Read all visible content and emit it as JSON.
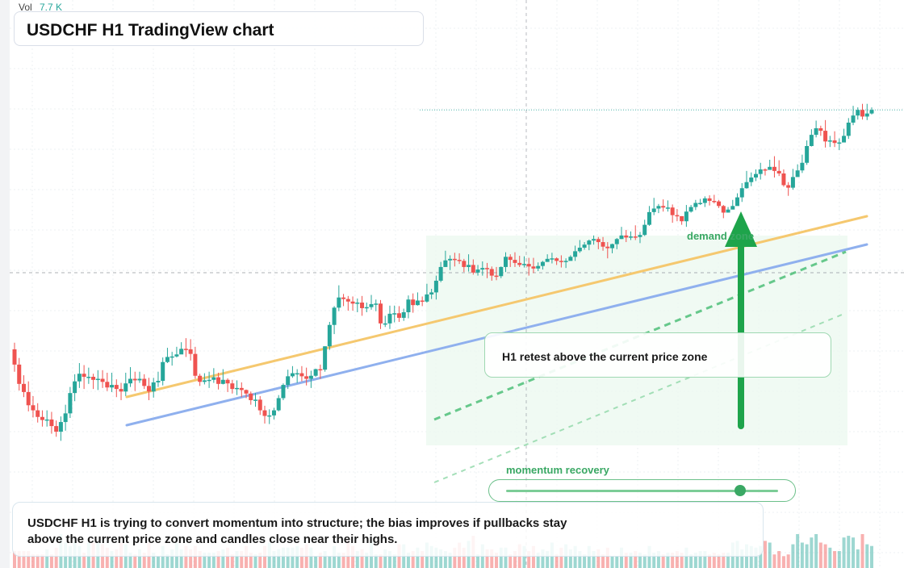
{
  "volume": {
    "label": "Vol",
    "value": "7.7 K"
  },
  "header": {
    "title": "USDCHF H1 TradingView chart"
  },
  "annotations": {
    "callout": "H1 retest above the current price zone",
    "zone_label": "demand zone",
    "momentum_label": "momentum recovery",
    "momentum_level": 0.86,
    "summary": "USDCHF H1 is trying to convert momentum into structure; the bias improves if pullbacks stay above the current price zone and candles close near their highs."
  },
  "colors": {
    "up": "#26a69a",
    "down": "#ef5350",
    "trend_orange": "#f5c86f",
    "trend_blue": "#8fb0ee",
    "accent_green": "#1ea44b"
  },
  "chart_data": {
    "type": "candlestick",
    "interval": "H1",
    "symbol": "USDCHF",
    "title": "USDCHF H1 TradingView chart",
    "grid": true,
    "candles": [
      [
        35.4,
        32.4,
        36.7,
        31.0,
        10
      ],
      [
        32.4,
        28.6,
        33.7,
        27.3,
        10
      ],
      [
        28.6,
        27.0,
        30.3,
        26.0,
        10
      ],
      [
        27.0,
        24.4,
        29.1,
        23.2,
        10
      ],
      [
        24.4,
        23.4,
        26.2,
        22.0,
        8
      ],
      [
        23.4,
        22.1,
        24.8,
        21.0,
        8
      ],
      [
        22.1,
        21.5,
        23.4,
        20.2,
        8
      ],
      [
        21.5,
        21.6,
        23.4,
        20.2,
        11
      ],
      [
        21.6,
        20.3,
        23.1,
        18.8,
        8
      ],
      [
        20.3,
        19.2,
        21.4,
        18.2,
        12
      ],
      [
        19.2,
        21.1,
        22.2,
        17.4,
        20
      ],
      [
        21.1,
        22.8,
        24.5,
        19.4,
        15
      ],
      [
        22.8,
        26.8,
        28.0,
        21.9,
        13
      ],
      [
        26.8,
        29.1,
        30.5,
        25.2,
        16
      ],
      [
        29.1,
        30.6,
        32.7,
        27.8,
        13
      ],
      [
        30.6,
        30.0,
        32.3,
        27.6,
        9
      ],
      [
        30.0,
        30.0,
        31.8,
        28.6,
        15
      ],
      [
        30.0,
        29.4,
        30.6,
        27.6,
        15
      ],
      [
        29.4,
        29.6,
        31.3,
        27.4,
        15
      ],
      [
        29.6,
        29.0,
        31.3,
        27.8,
        14
      ],
      [
        29.0,
        27.9,
        30.8,
        27.2,
        12
      ],
      [
        27.9,
        28.4,
        30.8,
        27.0,
        10
      ],
      [
        28.4,
        27.6,
        29.5,
        26.0,
        11
      ],
      [
        27.6,
        27.1,
        28.8,
        25.4,
        15
      ],
      [
        27.1,
        28.7,
        30.8,
        26.2,
        14
      ],
      [
        28.7,
        29.6,
        31.9,
        28.0,
        9
      ],
      [
        29.6,
        29.3,
        31.0,
        27.2,
        8
      ],
      [
        29.3,
        29.6,
        31.0,
        28.8,
        11
      ],
      [
        29.6,
        28.2,
        30.5,
        27.6,
        9
      ],
      [
        28.2,
        27.1,
        29.8,
        25.4,
        15
      ],
      [
        27.1,
        28.9,
        29.8,
        25.9,
        9
      ],
      [
        28.9,
        29.2,
        31.0,
        28.0,
        7
      ],
      [
        29.2,
        32.9,
        33.8,
        28.3,
        13
      ],
      [
        32.9,
        33.9,
        35.7,
        32.7,
        8
      ],
      [
        33.9,
        34.0,
        34.9,
        32.2,
        11
      ],
      [
        34.0,
        34.4,
        35.9,
        33.8,
        15
      ],
      [
        34.4,
        35.5,
        36.8,
        34.6,
        11
      ],
      [
        35.5,
        35.4,
        37.6,
        33.9,
        13
      ],
      [
        35.4,
        34.5,
        37.4,
        33.2,
        11
      ],
      [
        34.5,
        30.2,
        35.9,
        29.6,
        13
      ],
      [
        30.2,
        29.0,
        30.6,
        28.2,
        10
      ],
      [
        29.0,
        29.3,
        30.7,
        28.5,
        9
      ],
      [
        29.3,
        29.4,
        31.0,
        27.8,
        9
      ],
      [
        29.4,
        29.9,
        31.7,
        28.8,
        9
      ],
      [
        29.9,
        28.6,
        30.8,
        27.5,
        10
      ],
      [
        28.6,
        29.4,
        31.5,
        28.5,
        11
      ],
      [
        29.4,
        28.7,
        29.7,
        27.0,
        12
      ],
      [
        28.7,
        27.6,
        29.4,
        26.7,
        8
      ],
      [
        27.6,
        27.8,
        29.3,
        26.4,
        10
      ],
      [
        27.8,
        27.4,
        28.9,
        26.0,
        10
      ],
      [
        27.4,
        26.7,
        27.5,
        25.8,
        13
      ],
      [
        26.7,
        25.4,
        27.1,
        24.5,
        9
      ],
      [
        25.4,
        25.5,
        26.8,
        24.1,
        8
      ],
      [
        25.5,
        23.4,
        26.2,
        22.5,
        9
      ],
      [
        23.4,
        22.3,
        24.3,
        20.8,
        13
      ],
      [
        22.3,
        22.4,
        23.6,
        20.7,
        15
      ],
      [
        22.4,
        23.4,
        23.9,
        21.6,
        10
      ],
      [
        23.4,
        25.8,
        26.4,
        23.2,
        11
      ],
      [
        25.8,
        28.4,
        28.7,
        25.4,
        12
      ],
      [
        28.4,
        30.1,
        31.4,
        27.6,
        12
      ],
      [
        30.1,
        30.7,
        32.1,
        29.8,
        12
      ],
      [
        30.7,
        30.7,
        31.5,
        28.8,
        13
      ],
      [
        30.7,
        30.1,
        32.1,
        29.1,
        12
      ],
      [
        30.1,
        29.6,
        31.8,
        28.3,
        14
      ],
      [
        29.6,
        30.2,
        31.2,
        27.8,
        12
      ],
      [
        30.2,
        31.5,
        31.6,
        30.0,
        7
      ],
      [
        31.5,
        31.4,
        32.4,
        29.6,
        9
      ],
      [
        31.4,
        36.0,
        36.0,
        31.0,
        10
      ],
      [
        36.0,
        40.2,
        40.8,
        35.3,
        7
      ],
      [
        40.2,
        43.6,
        43.9,
        38.4,
        13
      ],
      [
        43.6,
        45.6,
        48.0,
        42.9,
        9
      ],
      [
        45.6,
        45.3,
        46.3,
        43.9,
        9
      ],
      [
        45.3,
        44.8,
        45.9,
        43.0,
        16
      ],
      [
        44.8,
        44.4,
        45.8,
        43.0,
        13
      ],
      [
        44.4,
        44.6,
        45.4,
        42.7,
        10
      ],
      [
        44.6,
        43.5,
        45.9,
        42.0,
        11
      ],
      [
        43.5,
        43.7,
        44.6,
        42.7,
        9
      ],
      [
        43.7,
        44.3,
        46.1,
        43.2,
        16
      ],
      [
        44.3,
        44.4,
        45.2,
        42.9,
        8
      ],
      [
        44.4,
        40.5,
        45.1,
        39.4,
        8
      ],
      [
        40.5,
        40.5,
        42.0,
        39.8,
        11
      ],
      [
        40.5,
        42.4,
        44.0,
        39.4,
        10
      ],
      [
        42.4,
        42.5,
        44.0,
        40.7,
        8
      ],
      [
        42.5,
        41.6,
        43.9,
        40.8,
        14
      ],
      [
        41.6,
        42.7,
        43.4,
        41.0,
        14
      ],
      [
        42.7,
        45.2,
        46.0,
        41.5,
        9
      ],
      [
        45.2,
        44.1,
        46.4,
        42.6,
        10
      ],
      [
        44.1,
        45.0,
        46.6,
        44.0,
        12
      ],
      [
        45.0,
        44.8,
        45.8,
        43.9,
        10
      ],
      [
        44.8,
        46.2,
        48.3,
        44.6,
        15
      ],
      [
        46.2,
        46.6,
        47.3,
        45.3,
        13
      ],
      [
        46.6,
        48.9,
        49.9,
        45.2,
        12
      ],
      [
        48.9,
        51.6,
        52.6,
        48.6,
        11
      ],
      [
        51.6,
        52.9,
        54.8,
        51.6,
        10
      ],
      [
        52.9,
        53.2,
        53.9,
        51.0,
        9
      ],
      [
        53.2,
        53.0,
        54.4,
        51.7,
        12
      ],
      [
        53.0,
        52.8,
        54.3,
        52.2,
        15
      ],
      [
        52.8,
        51.6,
        53.2,
        50.6,
        12
      ],
      [
        51.6,
        52.0,
        54.1,
        50.7,
        16
      ],
      [
        52.0,
        50.5,
        53.1,
        50.1,
        19
      ],
      [
        50.5,
        51.1,
        52.0,
        49.9,
        8
      ],
      [
        51.1,
        51.4,
        52.7,
        49.9,
        14
      ],
      [
        51.4,
        51.2,
        52.4,
        49.4,
        11
      ],
      [
        51.2,
        49.9,
        51.7,
        48.9,
        11
      ],
      [
        49.9,
        49.8,
        51.6,
        49.0,
        9
      ],
      [
        49.8,
        51.6,
        51.7,
        49.4,
        12
      ],
      [
        51.6,
        53.6,
        54.5,
        50.6,
        12
      ],
      [
        53.6,
        53.0,
        54.1,
        51.6,
        8
      ],
      [
        53.0,
        52.4,
        54.5,
        51.6,
        10
      ],
      [
        52.4,
        52.0,
        53.8,
        51.6,
        14
      ],
      [
        52.0,
        52.2,
        53.7,
        51.5,
        13
      ],
      [
        52.2,
        51.7,
        53.4,
        49.9,
        10
      ],
      [
        51.7,
        51.3,
        53.4,
        50.4,
        13
      ],
      [
        51.3,
        51.8,
        52.5,
        50.8,
        9
      ],
      [
        51.8,
        52.6,
        52.8,
        51.1,
        11
      ],
      [
        52.6,
        53.2,
        54.1,
        52.6,
        10
      ],
      [
        53.2,
        53.3,
        54.4,
        52.3,
        15
      ],
      [
        53.3,
        52.8,
        53.5,
        52.0,
        8
      ],
      [
        52.8,
        52.6,
        53.9,
        51.5,
        12
      ],
      [
        52.6,
        52.8,
        53.3,
        51.4,
        14
      ],
      [
        52.8,
        53.6,
        53.9,
        53.1,
        11
      ],
      [
        53.6,
        54.7,
        55.8,
        52.8,
        13
      ],
      [
        54.7,
        55.4,
        56.9,
        54.4,
        10
      ],
      [
        55.4,
        56.0,
        56.5,
        55.0,
        8
      ],
      [
        56.0,
        56.8,
        57.0,
        54.9,
        13
      ],
      [
        56.8,
        57.1,
        57.8,
        56.0,
        10
      ],
      [
        57.1,
        56.5,
        57.5,
        55.1,
        11
      ],
      [
        56.5,
        55.6,
        57.5,
        54.8,
        8
      ],
      [
        55.6,
        55.3,
        56.5,
        53.3,
        12
      ],
      [
        55.3,
        56.1,
        56.2,
        54.3,
        7
      ],
      [
        56.1,
        57.1,
        57.3,
        55.1,
        7
      ],
      [
        57.1,
        57.8,
        59.5,
        57.1,
        12
      ],
      [
        57.8,
        57.4,
        58.9,
        56.5,
        9
      ],
      [
        57.4,
        57.6,
        58.6,
        56.9,
        9
      ],
      [
        57.6,
        57.5,
        59.8,
        56.9,
        10
      ],
      [
        57.5,
        57.9,
        58.5,
        56.3,
        9
      ],
      [
        57.9,
        59.9,
        60.9,
        57.7,
        8
      ],
      [
        59.9,
        62.4,
        63.6,
        59.7,
        13
      ],
      [
        62.4,
        63.1,
        65.2,
        61.8,
        9
      ],
      [
        63.1,
        63.6,
        64.0,
        62.2,
        10
      ],
      [
        63.6,
        63.3,
        64.9,
        62.5,
        8
      ],
      [
        63.3,
        63.3,
        64.7,
        62.5,
        9
      ],
      [
        63.3,
        61.8,
        63.9,
        60.3,
        9
      ],
      [
        61.8,
        61.6,
        63.0,
        60.6,
        10
      ],
      [
        61.6,
        60.6,
        61.6,
        59.9,
        9
      ],
      [
        60.6,
        62.5,
        63.8,
        59.5,
        12
      ],
      [
        62.5,
        63.4,
        63.8,
        62.3,
        8
      ],
      [
        63.4,
        64.2,
        64.8,
        62.8,
        9
      ],
      [
        64.2,
        64.2,
        65.0,
        63.8,
        10
      ],
      [
        64.2,
        65.1,
        65.5,
        63.4,
        10
      ],
      [
        65.1,
        64.6,
        65.7,
        63.7,
        8
      ],
      [
        64.6,
        64.5,
        65.8,
        64.1,
        9
      ],
      [
        64.5,
        63.6,
        64.8,
        63.2,
        8
      ],
      [
        63.6,
        62.3,
        63.8,
        61.2,
        9
      ],
      [
        62.3,
        62.9,
        63.4,
        62.6,
        9
      ],
      [
        62.9,
        63.6,
        64.8,
        63.3,
        15
      ],
      [
        63.6,
        65.3,
        66.1,
        63.8,
        16
      ],
      [
        65.3,
        67.1,
        68.1,
        64.4,
        11
      ],
      [
        67.1,
        68.3,
        70.5,
        67.0,
        14
      ],
      [
        68.3,
        69.2,
        70.2,
        67.5,
        13
      ],
      [
        69.2,
        69.9,
        70.8,
        68.5,
        12
      ],
      [
        69.9,
        70.8,
        72.1,
        68.8,
        13
      ],
      [
        70.8,
        70.7,
        71.0,
        69.6,
        16
      ],
      [
        70.7,
        71.3,
        72.7,
        70.8,
        15
      ],
      [
        71.3,
        70.5,
        73.4,
        69.2,
        8
      ],
      [
        70.5,
        70.0,
        72.6,
        69.5,
        10
      ],
      [
        70.0,
        67.7,
        70.8,
        67.4,
        7
      ],
      [
        67.7,
        67.2,
        68.3,
        65.6,
        8
      ],
      [
        67.2,
        69.3,
        70.9,
        66.8,
        14
      ],
      [
        69.3,
        70.6,
        71.8,
        69.7,
        20
      ],
      [
        70.6,
        72.1,
        73.7,
        70.1,
        15
      ],
      [
        72.1,
        75.4,
        76.5,
        71.7,
        14
      ],
      [
        75.4,
        77.6,
        78.7,
        75.3,
        18
      ],
      [
        77.6,
        78.9,
        80.4,
        77.1,
        20
      ],
      [
        78.9,
        78.4,
        79.4,
        77.4,
        15
      ],
      [
        78.4,
        76.3,
        80.5,
        75.1,
        14
      ],
      [
        76.3,
        76.5,
        77.4,
        75.2,
        12
      ],
      [
        76.5,
        76.0,
        78.3,
        75.2,
        10
      ],
      [
        76.0,
        76.1,
        76.9,
        74.6,
        10
      ],
      [
        76.1,
        77.4,
        78.8,
        76.8,
        18
      ],
      [
        77.4,
        80.0,
        80.9,
        76.8,
        19
      ],
      [
        80.0,
        81.4,
        83.3,
        79.5,
        18
      ],
      [
        81.4,
        82.5,
        83.0,
        80.6,
        11
      ],
      [
        82.5,
        81.2,
        83.7,
        80.6,
        20
      ],
      [
        81.2,
        81.8,
        83.7,
        80.5,
        14
      ],
      [
        81.8,
        82.5,
        83.0,
        81.6,
        13
      ]
    ]
  }
}
